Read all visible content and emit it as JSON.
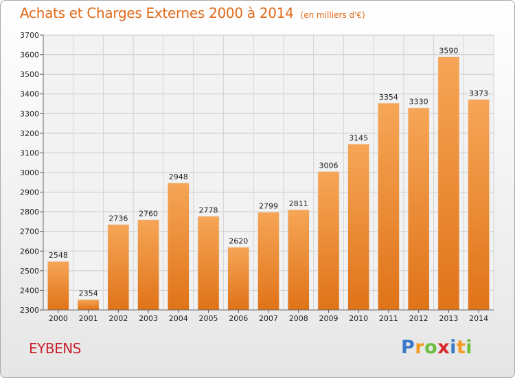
{
  "chart_data": {
    "type": "bar",
    "title": "Achats et Charges Externes 2000 à 2014",
    "subtitle": "(en milliers d'€)",
    "categories": [
      "2000",
      "2001",
      "2002",
      "2003",
      "2004",
      "2005",
      "2006",
      "2007",
      "2008",
      "2009",
      "2010",
      "2011",
      "2012",
      "2013",
      "2014"
    ],
    "values": [
      2548,
      2354,
      2736,
      2760,
      2948,
      2778,
      2620,
      2799,
      2811,
      3006,
      3145,
      3354,
      3330,
      3590,
      3373
    ],
    "ylim": [
      2300,
      3700
    ],
    "yticks": [
      2300,
      2400,
      2500,
      2600,
      2700,
      2800,
      2900,
      3000,
      3100,
      3200,
      3300,
      3400,
      3500,
      3600,
      3700
    ],
    "grid": true,
    "bar_color": "#f0953e"
  },
  "commune": "EYBENS",
  "logo": {
    "letters": [
      "P",
      "r",
      "o",
      "x",
      "i",
      "t",
      "i"
    ],
    "colors": [
      "#3a78c8",
      "#f29a1e",
      "#6bbf3c",
      "#d8262c",
      "#3a78c8",
      "#f29a1e",
      "#6bbf3c"
    ]
  }
}
